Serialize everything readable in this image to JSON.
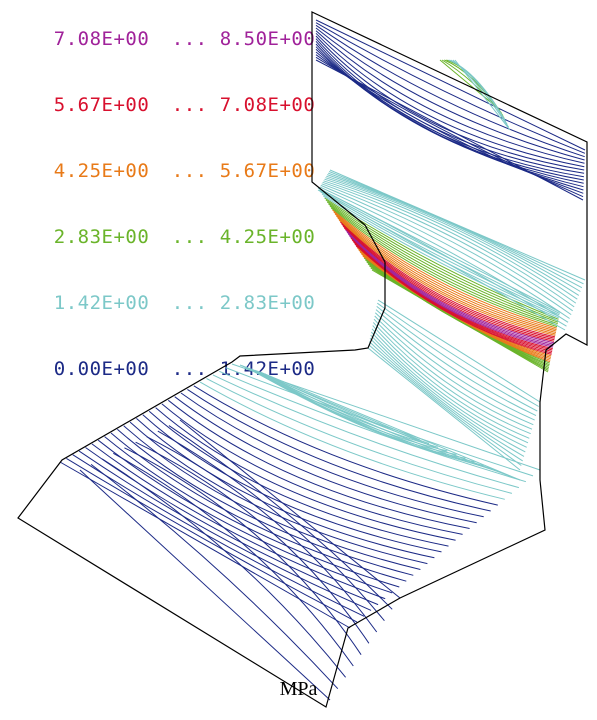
{
  "legend": {
    "bands": [
      {
        "low": "7.08E+00",
        "sep": "...",
        "high": "8.50E+00",
        "color": "#a0229a"
      },
      {
        "low": "5.67E+00",
        "sep": "...",
        "high": "7.08E+00",
        "color": "#d8102e"
      },
      {
        "low": "4.25E+00",
        "sep": "...",
        "high": "5.67E+00",
        "color": "#e87a18"
      },
      {
        "low": "2.83E+00",
        "sep": "...",
        "high": "4.25E+00",
        "color": "#6ab42a"
      },
      {
        "low": "1.42E+00",
        "sep": "...",
        "high": "2.83E+00",
        "color": "#7cc8c8"
      },
      {
        "low": "0.00E+00",
        "sep": "...",
        "high": "1.42E+00",
        "color": "#1c2a86"
      }
    ]
  },
  "unit_label": "MPa",
  "colors": {
    "outline": "#000000",
    "low": "#1c2a86",
    "light": "#7cc8c8",
    "mid": "#6ab42a",
    "upper": "#e87a18",
    "high": "#d8102e",
    "peak": "#a0229a"
  }
}
